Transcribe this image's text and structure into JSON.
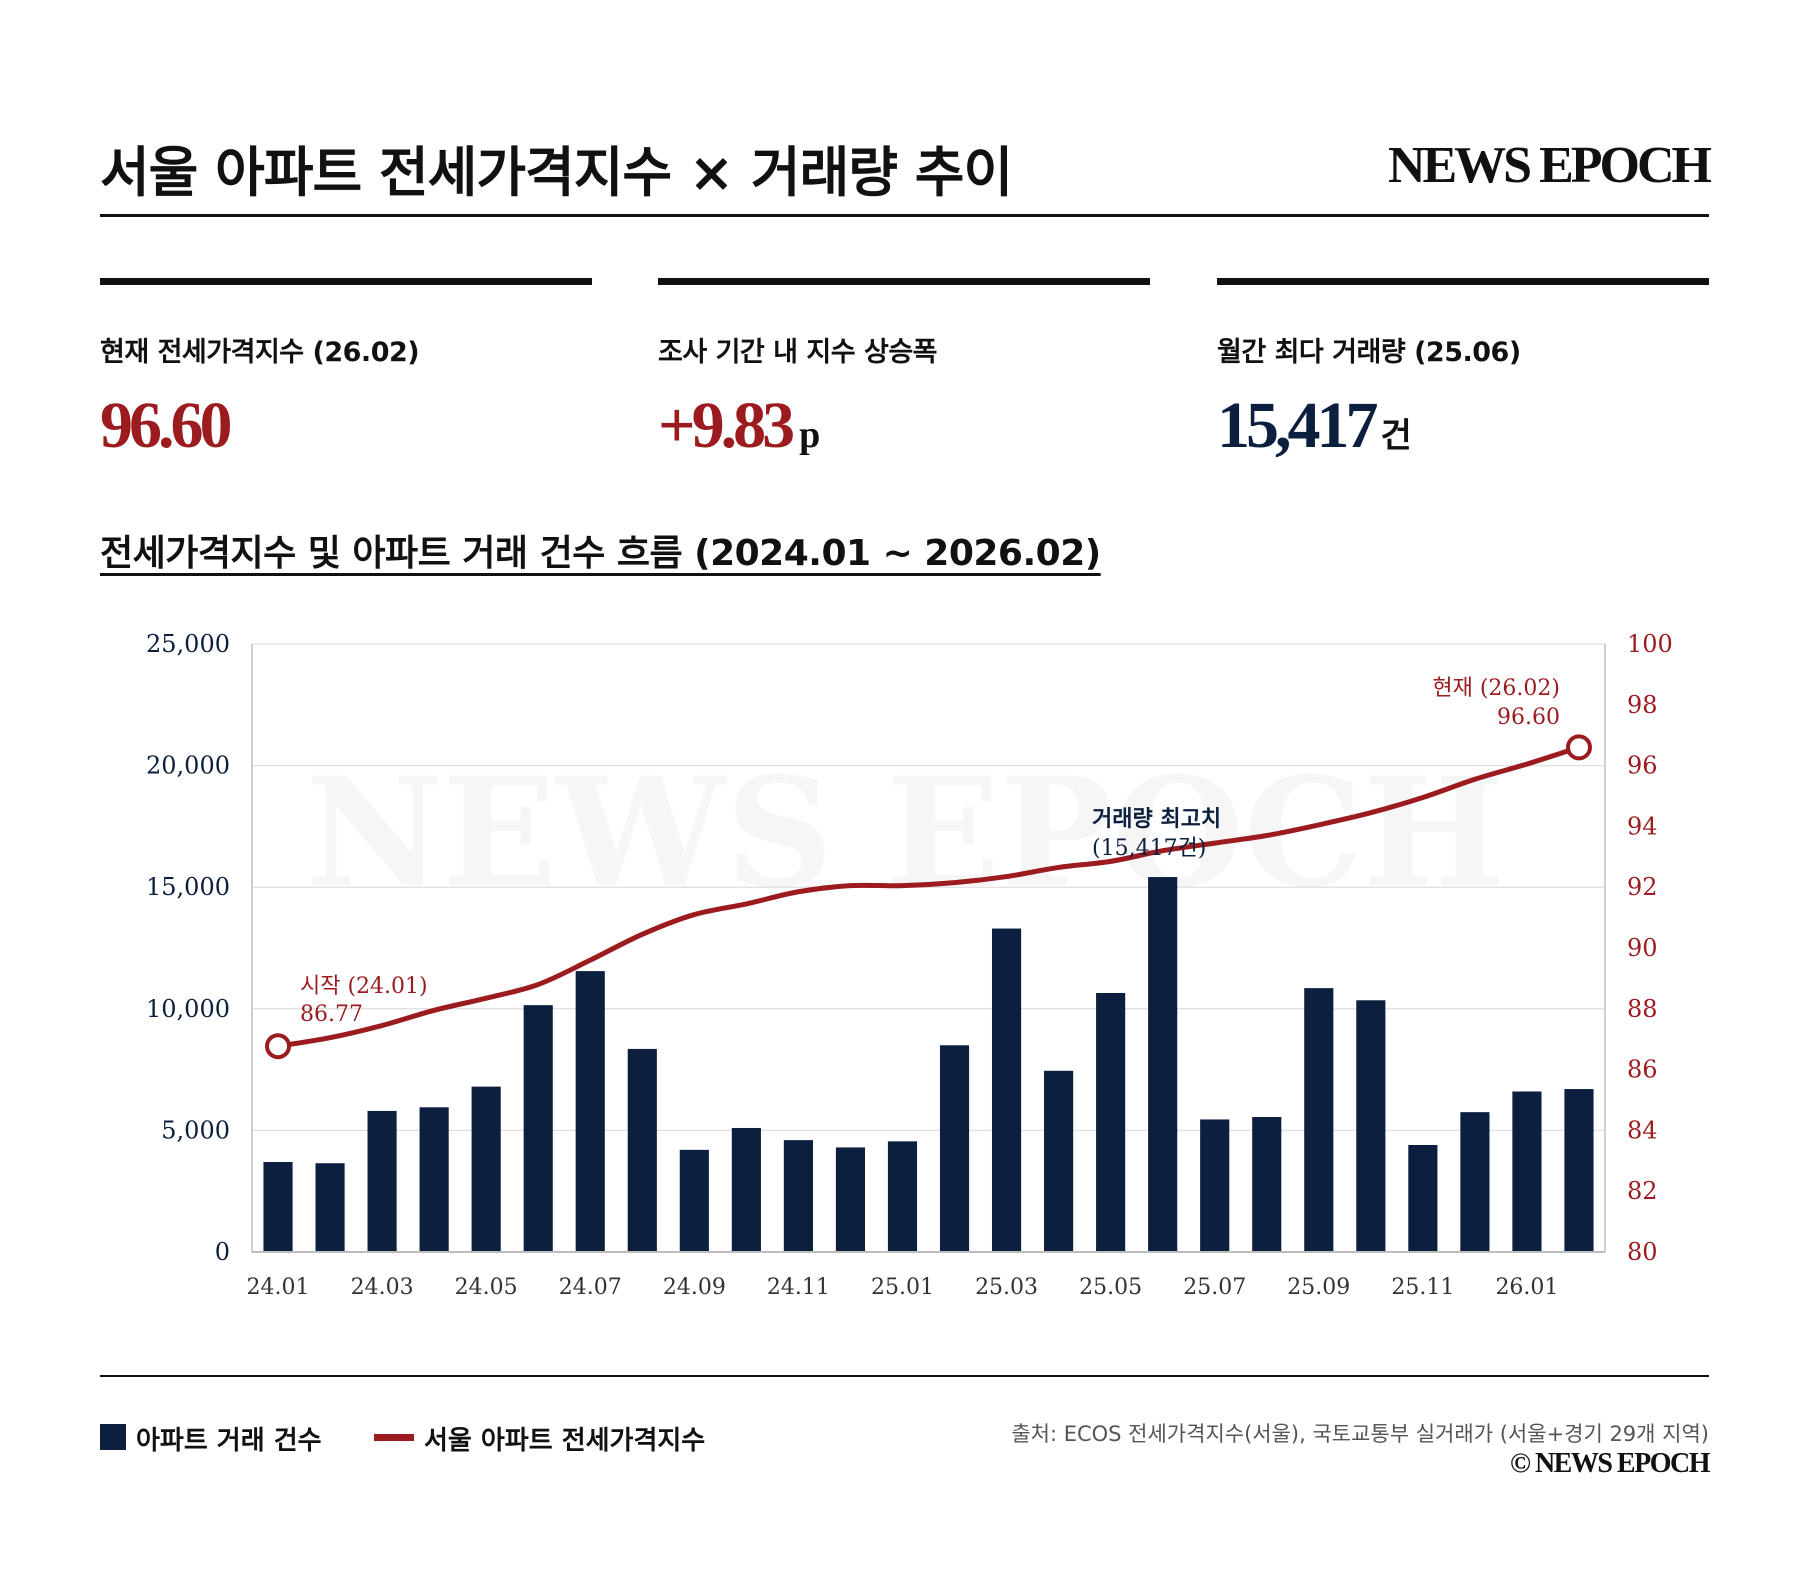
{
  "header": {
    "title": "서울 아파트 전세가격지수 × 거래량 추이",
    "brand": "NEWS EPOCH"
  },
  "kpis": [
    {
      "label": "현재 전세가격지수 (26.02)",
      "value": "96.60",
      "unit": "",
      "color": "#9b1b1f"
    },
    {
      "label": "조사 기간 내 지수 상승폭",
      "value": "+9.83",
      "unit": "p",
      "color": "#9b1b1f"
    },
    {
      "label": "월간 최다 거래량 (25.06)",
      "value": "15,417",
      "unit": "건",
      "color": "#0c1f3f"
    }
  ],
  "section_title": "전세가격지수 및 아파트 거래 건수 흐름 (2024.01 ~ 2026.02)",
  "chart_data": {
    "type": "bar+line",
    "watermark": "NEWS EPOCH",
    "months": [
      "24.01",
      "24.02",
      "24.03",
      "24.04",
      "24.05",
      "24.06",
      "24.07",
      "24.08",
      "24.09",
      "24.10",
      "24.11",
      "24.12",
      "25.01",
      "25.02",
      "25.03",
      "25.04",
      "25.05",
      "25.06",
      "25.07",
      "25.08",
      "25.09",
      "25.10",
      "25.11",
      "25.12",
      "26.01",
      "26.02"
    ],
    "x_tick_labels": [
      "24.01",
      "24.03",
      "24.05",
      "24.07",
      "24.09",
      "24.11",
      "25.01",
      "25.03",
      "25.05",
      "25.07",
      "25.09",
      "25.11",
      "26.01"
    ],
    "series": [
      {
        "name": "아파트 거래 건수",
        "type": "bar",
        "axis": "left",
        "color": "#0c1f3f",
        "values": [
          3700,
          3650,
          5800,
          5950,
          6800,
          10150,
          11550,
          8350,
          4200,
          5100,
          4600,
          4300,
          4550,
          8500,
          13300,
          7450,
          10650,
          15417,
          5450,
          5550,
          10850,
          10350,
          4400,
          5750,
          6600,
          6700
        ]
      },
      {
        "name": "서울 아파트 전세가격지수",
        "type": "line",
        "axis": "right",
        "color": "#9b1b1f",
        "values": [
          86.77,
          87.05,
          87.45,
          87.95,
          88.35,
          88.8,
          89.6,
          90.45,
          91.1,
          91.45,
          91.85,
          92.05,
          92.05,
          92.15,
          92.35,
          92.65,
          92.85,
          93.2,
          93.45,
          93.7,
          94.05,
          94.45,
          94.95,
          95.55,
          96.05,
          96.6
        ]
      }
    ],
    "y_left": {
      "min": 0,
      "max": 25000,
      "ticks": [
        "0",
        "5,000",
        "10,000",
        "15,000",
        "20,000",
        "25,000"
      ],
      "tick_values": [
        0,
        5000,
        10000,
        15000,
        20000,
        25000
      ]
    },
    "y_right": {
      "min": 80,
      "max": 100,
      "ticks": [
        "80",
        "82",
        "84",
        "86",
        "88",
        "90",
        "92",
        "94",
        "96",
        "98",
        "100"
      ],
      "tick_values": [
        80,
        82,
        84,
        86,
        88,
        90,
        92,
        94,
        96,
        98,
        100
      ]
    },
    "annotations": {
      "start": {
        "line1": "시작 (24.01)",
        "line2": "86.77"
      },
      "peak": {
        "line1": "거래량 최고치",
        "line2": "(15,417건)"
      },
      "current": {
        "line1": "현재 (26.02)",
        "line2": "96.60"
      }
    },
    "grid": true
  },
  "legend": {
    "bar_label": "아파트 거래 건수",
    "line_label": "서울 아파트 전세가격지수"
  },
  "footer": {
    "source": "출처: ECOS 전세가격지수(서울), 국토교통부 실거래가 (서울+경기 29개 지역)",
    "copyright": "© NEWS EPOCH"
  }
}
